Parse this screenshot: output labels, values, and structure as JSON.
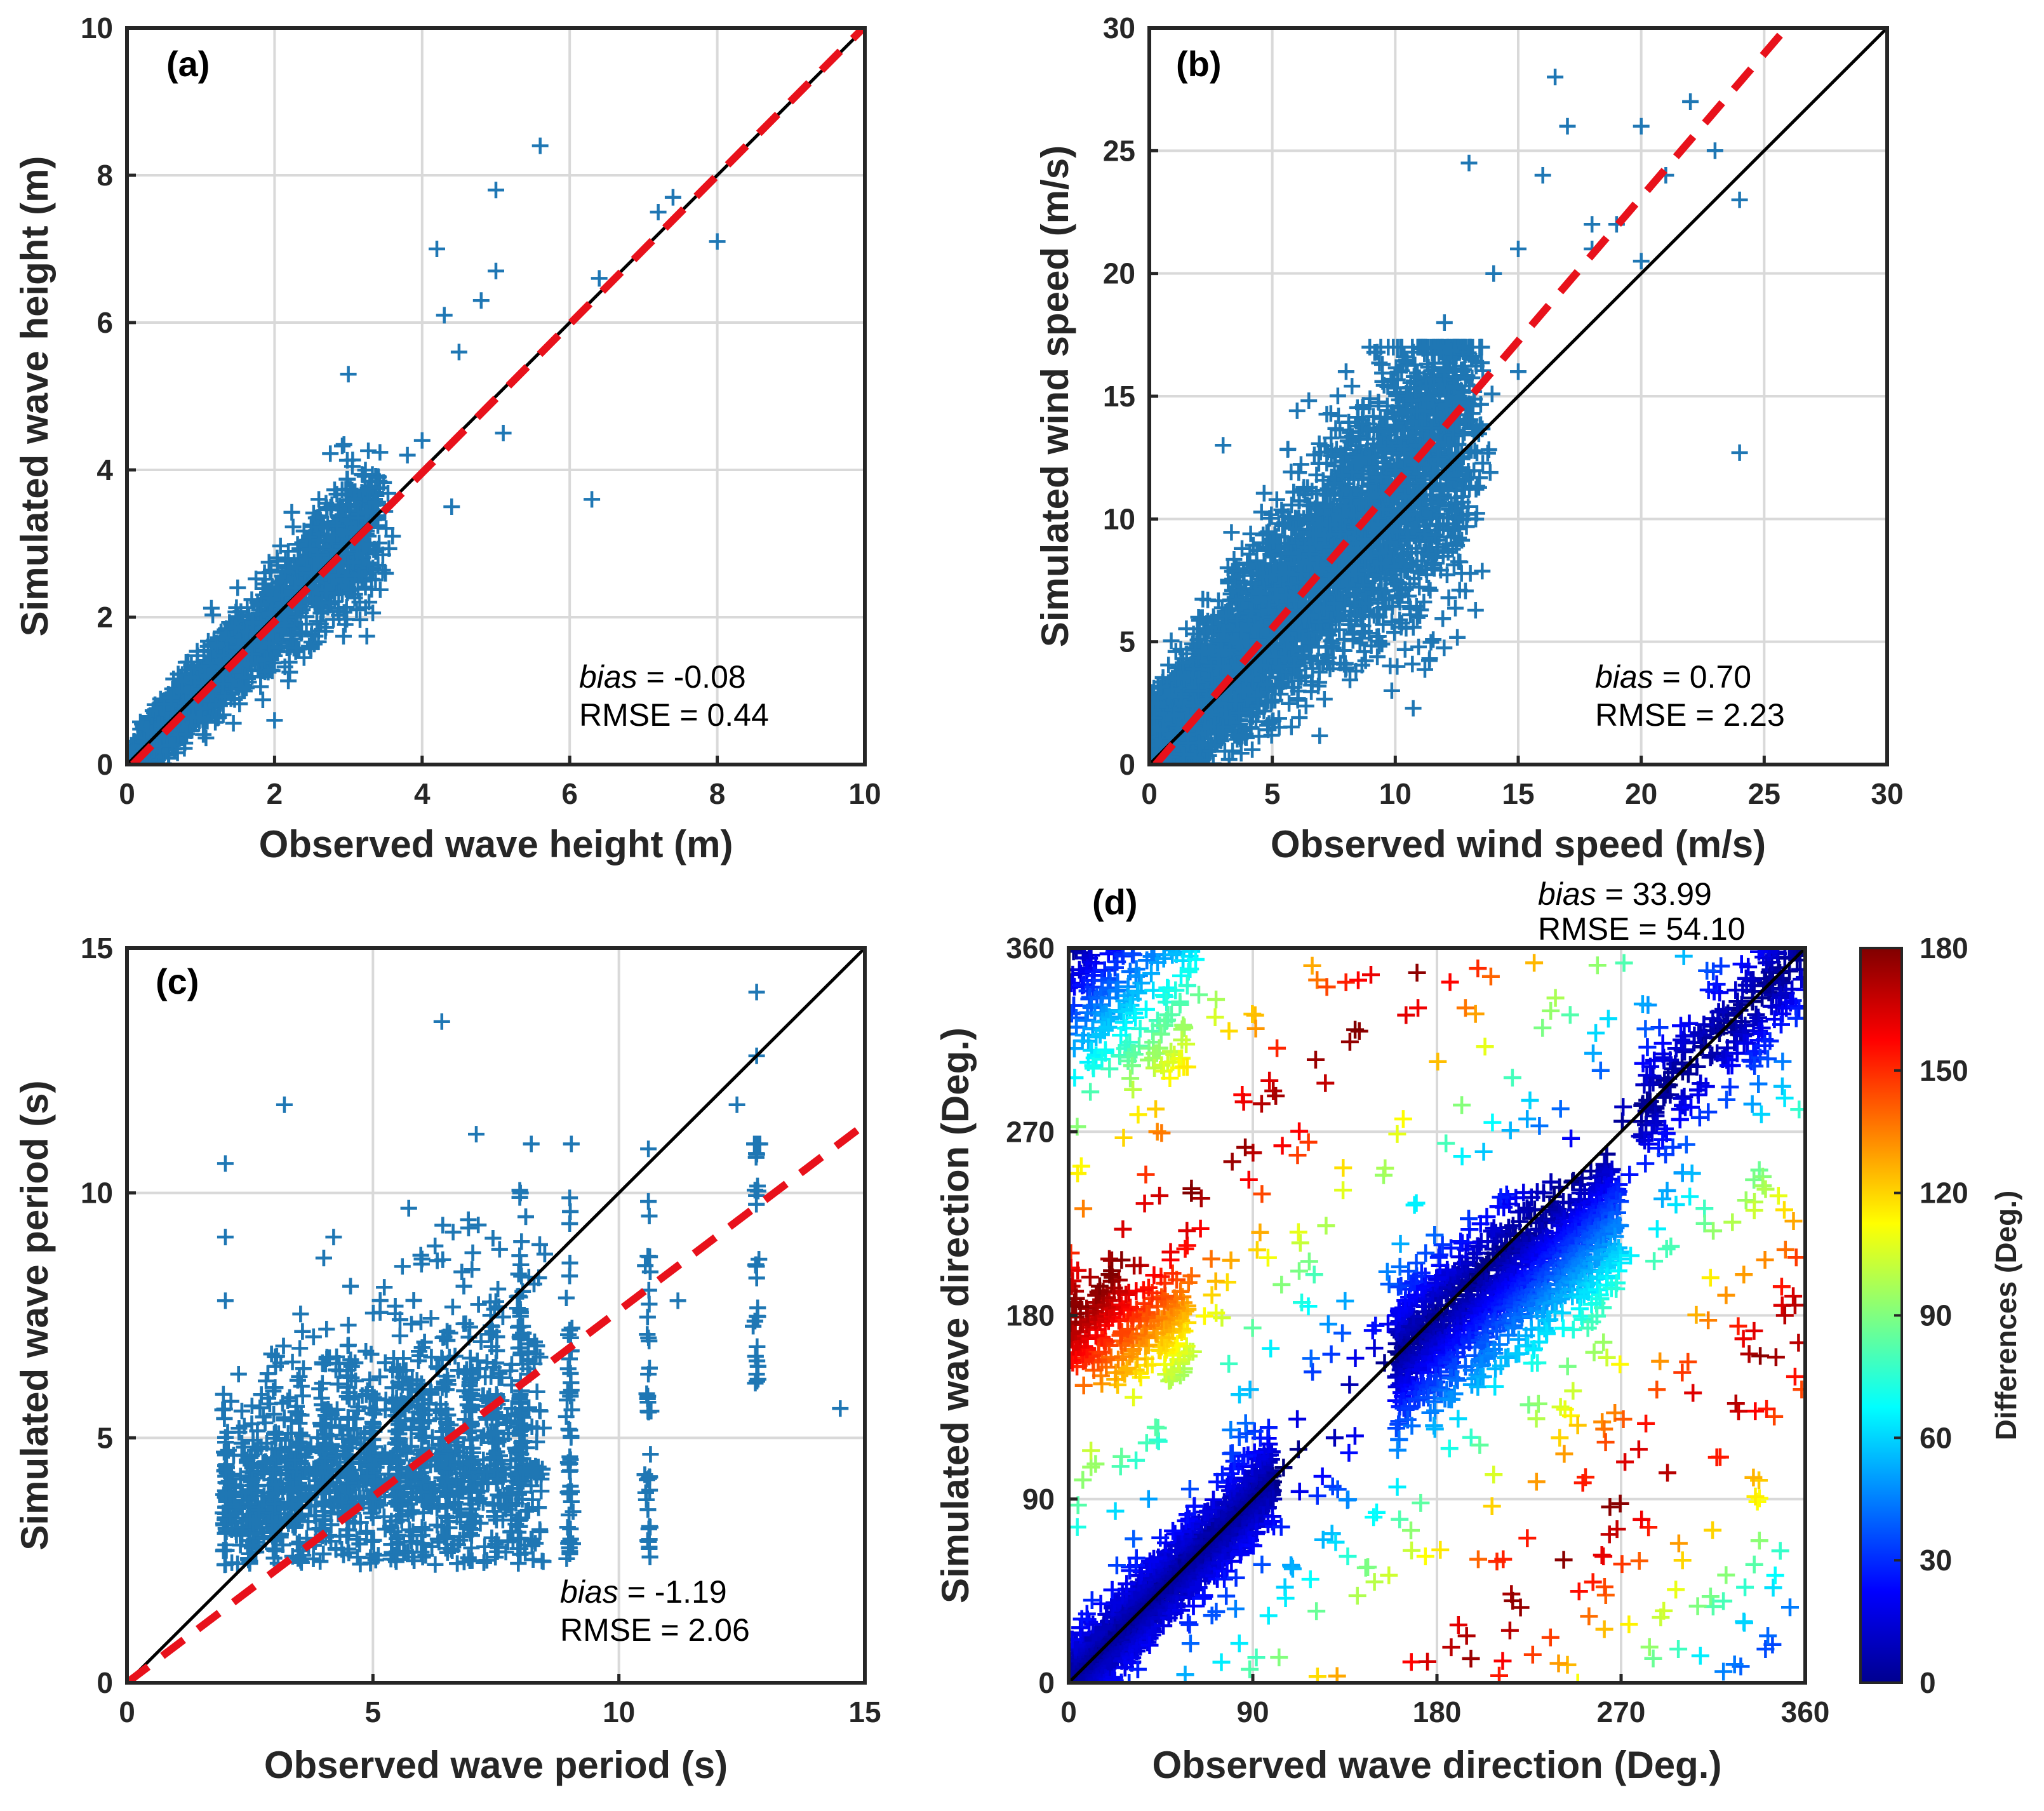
{
  "chart_data": [
    {
      "type": "scatter",
      "panel_label": "(a)",
      "xlabel": "Observed wave height (m)",
      "ylabel": "Simulated wave height (m)",
      "xlim": [
        0,
        10
      ],
      "ylim": [
        0,
        10
      ],
      "xticks": [
        0,
        2,
        4,
        6,
        8,
        10
      ],
      "yticks": [
        0,
        2,
        4,
        6,
        8,
        10
      ],
      "xtick_labels": [
        "0",
        "2",
        "4",
        "6",
        "8",
        "10"
      ],
      "ytick_labels": [
        "0",
        "2",
        "4",
        "6",
        "8",
        "10"
      ],
      "grid": true,
      "fit_line": {
        "slope": 1.01,
        "intercept": -0.08,
        "color": "#e8111b",
        "style": "dashed"
      },
      "reference_line": "1:1",
      "bias_label": "bias",
      "bias_value": "= -0.08",
      "rmse_text": "RMSE =  0.44",
      "marker_color": "#1f77b4",
      "sample_points": {
        "x": [
          0.3,
          0.5,
          0.7,
          0.9,
          1.1,
          1.3,
          1.5,
          1.7,
          1.9,
          2.1,
          2.3,
          2.5,
          2.8,
          3.1,
          3.4,
          3.8,
          4.2,
          4.3,
          4.5,
          4.8,
          5.0,
          5.0,
          5.1,
          5.6,
          6.3,
          6.4,
          7.2,
          7.4,
          8.0,
          2.0,
          1.5,
          3.0,
          3.6,
          4.0,
          4.4,
          0.6,
          1.2,
          2.6
        ],
        "y": [
          0.2,
          0.4,
          0.7,
          0.8,
          1.2,
          1.1,
          1.6,
          1.5,
          1.9,
          2.3,
          2.0,
          2.6,
          2.7,
          3.2,
          3.9,
          4.2,
          7.0,
          6.1,
          5.6,
          6.3,
          7.8,
          6.7,
          4.5,
          8.4,
          3.6,
          6.6,
          7.5,
          7.7,
          7.1,
          0.6,
          2.4,
          5.3,
          3.1,
          4.4,
          3.5,
          0.9,
          0.8,
          3.6
        ]
      }
    },
    {
      "type": "scatter",
      "panel_label": "(b)",
      "xlabel": "Observed wind speed (m/s)",
      "ylabel": "Simulated wind speed (m/s)",
      "xlim": [
        0,
        30
      ],
      "ylim": [
        0,
        30
      ],
      "xticks": [
        0,
        5,
        10,
        15,
        20,
        25,
        30
      ],
      "yticks": [
        0,
        5,
        10,
        15,
        20,
        25,
        30
      ],
      "xtick_labels": [
        "0",
        "5",
        "10",
        "15",
        "20",
        "25",
        "30"
      ],
      "ytick_labels": [
        "0",
        "5",
        "10",
        "15",
        "20",
        "25",
        "30"
      ],
      "grid": true,
      "fit_line": {
        "slope": 1.17,
        "intercept": -0.3,
        "color": "#e8111b",
        "style": "dashed"
      },
      "reference_line": "1:1",
      "bias_label": "bias",
      "bias_value": "=  0.70",
      "rmse_text": "RMSE =  2.23",
      "marker_color": "#1f77b4",
      "sample_points": {
        "x": [
          1,
          2,
          3,
          4,
          5,
          6,
          7,
          8,
          9,
          10,
          11,
          12,
          13,
          14,
          15,
          16,
          16.5,
          17,
          18,
          19,
          20,
          21,
          22,
          23,
          24,
          24,
          15,
          13,
          12,
          18,
          20,
          2,
          3,
          8
        ],
        "y": [
          2,
          3,
          4,
          5,
          6,
          7,
          8,
          9,
          11,
          12,
          13,
          12,
          14,
          20,
          21,
          24,
          28,
          26,
          21,
          22,
          26,
          24,
          27,
          25,
          23,
          12.7,
          16,
          24.5,
          18,
          22,
          20.5,
          6,
          13,
          16
        ]
      }
    },
    {
      "type": "scatter",
      "panel_label": "(c)",
      "xlabel": "Observed wave period (s)",
      "ylabel": "Simulated wave period (s)",
      "xlim": [
        0,
        15
      ],
      "ylim": [
        0,
        15
      ],
      "xticks": [
        0,
        5,
        10,
        15
      ],
      "yticks": [
        0,
        5,
        10,
        15
      ],
      "xtick_labels": [
        "0",
        "5",
        "10",
        "15"
      ],
      "ytick_labels": [
        "0",
        "5",
        "10",
        "15"
      ],
      "grid": true,
      "fit_line": {
        "slope": 0.76,
        "intercept": 0.0,
        "color": "#e8111b",
        "style": "dashed"
      },
      "reference_line": "1:1",
      "bias_label": "bias",
      "bias_value": "= -1.19",
      "rmse_text": "RMSE =  2.06",
      "marker_color": "#1f77b4",
      "sample_points": {
        "x": [
          2.0,
          2.0,
          2.0,
          3.2,
          4.2,
          5.6,
          6.4,
          7.1,
          8.0,
          9.0,
          9.0,
          10.6,
          10.6,
          12.4,
          12.8,
          12.8,
          12.8,
          14.5,
          11.2,
          4.5
        ],
        "y": [
          10.6,
          9.1,
          7.8,
          11.8,
          9.1,
          8.5,
          13.5,
          11.2,
          10.0,
          9.9,
          7.2,
          10.9,
          6.3,
          11.8,
          14.1,
          12.8,
          6.3,
          5.6,
          7.8,
          7.3
        ]
      }
    },
    {
      "type": "scatter",
      "panel_label": "(d)",
      "xlabel": "Observed wave direction (Deg.)",
      "ylabel": "Simulated wave direction (Deg.)",
      "xlim": [
        0,
        360
      ],
      "ylim": [
        0,
        360
      ],
      "xticks": [
        0,
        90,
        180,
        270,
        360
      ],
      "yticks": [
        0,
        90,
        180,
        270,
        360
      ],
      "xtick_labels": [
        "0",
        "90",
        "180",
        "270",
        "360"
      ],
      "ytick_labels": [
        "0",
        "90",
        "180",
        "270",
        "360"
      ],
      "grid": true,
      "reference_line": "1:1",
      "bias_label": "bias",
      "bias_value": "= 33.99",
      "rmse_text": "RMSE = 54.10",
      "colorbar": {
        "label": "Differences (Deg.)",
        "range": [
          0,
          180
        ],
        "ticks": [
          0,
          30,
          60,
          90,
          120,
          150,
          180
        ],
        "tick_labels": [
          "0",
          "30",
          "60",
          "90",
          "120",
          "150",
          "180"
        ],
        "colormap": "jet"
      },
      "sample_points": {
        "x": [
          40,
          60,
          100,
          130,
          160,
          160,
          190,
          200,
          220,
          250,
          280,
          300,
          320,
          340,
          350,
          10,
          20,
          30,
          50,
          70,
          120,
          150,
          170,
          200,
          240,
          280,
          300,
          320,
          330,
          350,
          355,
          20,
          60,
          100,
          140,
          200,
          260,
          300,
          330,
          355
        ],
        "y": [
          30,
          55,
          90,
          120,
          150,
          180,
          175,
          190,
          215,
          240,
          275,
          310,
          330,
          345,
          355,
          355,
          345,
          330,
          185,
          190,
          200,
          175,
          190,
          145,
          120,
          80,
          60,
          40,
          30,
          180,
          185,
          200,
          240,
          290,
          320,
          350,
          300,
          250,
          200,
          150
        ]
      }
    }
  ]
}
